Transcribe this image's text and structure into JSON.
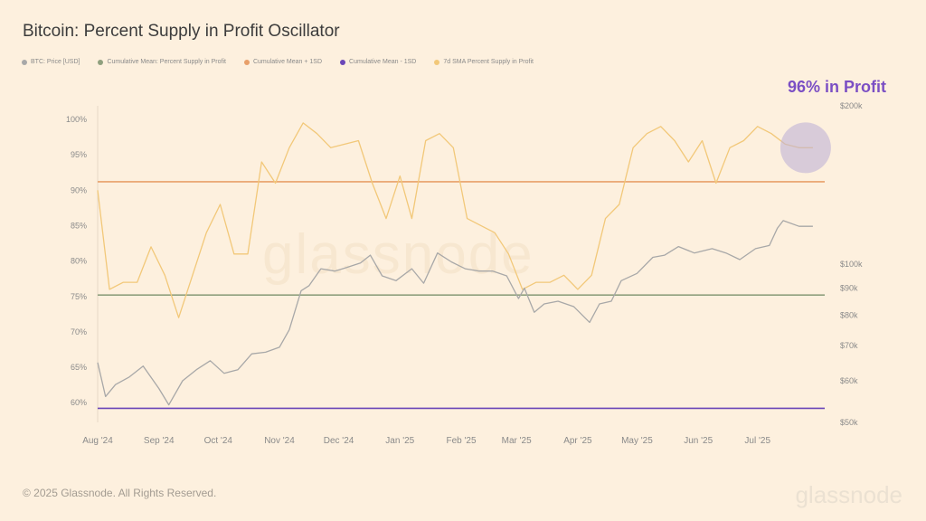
{
  "title": "Bitcoin: Percent Supply in Profit Oscillator",
  "legend": [
    {
      "label": "BTC: Price [USD]",
      "color": "#a8a8a8"
    },
    {
      "label": "Cumulative Mean: Percent Supply in Profit",
      "color": "#8fa07e"
    },
    {
      "label": "Cumulative Mean + 1SD",
      "color": "#e8a06a"
    },
    {
      "label": "Cumulative Mean - 1SD",
      "color": "#6b47b8"
    },
    {
      "label": "7d SMA Percent Supply in Profit",
      "color": "#f2c879"
    }
  ],
  "callout": "96% in Profit",
  "footer": "© 2025 Glassnode. All Rights Reserved.",
  "brand": "glassnode",
  "watermark": "glassnode",
  "chart_data": {
    "type": "line",
    "x_ticks": [
      "Aug '24",
      "Sep '24",
      "Oct '24",
      "Nov '24",
      "Dec '24",
      "Jan '25",
      "Feb '25",
      "Mar '25",
      "Apr '25",
      "May '25",
      "Jun '25",
      "Jul '25"
    ],
    "left_axis": {
      "ticks": [
        "100%",
        "95%",
        "90%",
        "85%",
        "80%",
        "75%",
        "70%",
        "65%",
        "60%"
      ],
      "range": [
        59,
        101
      ]
    },
    "right_axis": {
      "ticks": [
        "$200k",
        "$100k",
        "$90k",
        "$80k",
        "$70k",
        "$60k",
        "$50k"
      ],
      "scale": "log",
      "range": [
        50000,
        200000
      ]
    },
    "reference_lines": [
      {
        "name": "Cumulative Mean + 1SD",
        "value": 91.2,
        "color": "#e8a06a"
      },
      {
        "name": "Cumulative Mean: Percent Supply in Profit",
        "value": 75.2,
        "color": "#8fa07e"
      },
      {
        "name": "Cumulative Mean - 1SD",
        "value": 59.2,
        "color": "#6b47b8"
      }
    ],
    "series": [
      {
        "name": "7d SMA Percent Supply in Profit",
        "axis": "left",
        "color": "#f2c879",
        "x": [
          "2024-08-01",
          "2024-08-07",
          "2024-08-14",
          "2024-08-21",
          "2024-08-28",
          "2024-09-04",
          "2024-09-11",
          "2024-09-18",
          "2024-09-25",
          "2024-10-02",
          "2024-10-09",
          "2024-10-16",
          "2024-10-23",
          "2024-10-30",
          "2024-11-06",
          "2024-11-13",
          "2024-11-20",
          "2024-11-27",
          "2024-12-04",
          "2024-12-11",
          "2024-12-18",
          "2024-12-25",
          "2025-01-01",
          "2025-01-07",
          "2025-01-14",
          "2025-01-21",
          "2025-01-28",
          "2025-02-04",
          "2025-02-11",
          "2025-02-18",
          "2025-02-25",
          "2025-03-04",
          "2025-03-11",
          "2025-03-18",
          "2025-03-25",
          "2025-04-01",
          "2025-04-08",
          "2025-04-15",
          "2025-04-22",
          "2025-04-29",
          "2025-05-06",
          "2025-05-13",
          "2025-05-20",
          "2025-05-27",
          "2025-06-03",
          "2025-06-10",
          "2025-06-17",
          "2025-06-24",
          "2025-07-01",
          "2025-07-08",
          "2025-07-15",
          "2025-07-22",
          "2025-07-29"
        ],
        "y": [
          90,
          76,
          77,
          77,
          82,
          78,
          72,
          78,
          84,
          88,
          81,
          81,
          94,
          91,
          96,
          99.5,
          98,
          96,
          96.5,
          97,
          91,
          86,
          92,
          86,
          97,
          98,
          96,
          86,
          85,
          84,
          81,
          76,
          77,
          77,
          78,
          76,
          78,
          86,
          88,
          96,
          98,
          99,
          97,
          94,
          97,
          91,
          96,
          97,
          99,
          98,
          96.5,
          96,
          96
        ]
      },
      {
        "name": "BTC: Price [USD]",
        "axis": "right",
        "color": "#a8a8a8",
        "x": [
          "2024-08-01",
          "2024-08-05",
          "2024-08-10",
          "2024-08-17",
          "2024-08-24",
          "2024-09-01",
          "2024-09-06",
          "2024-09-13",
          "2024-09-20",
          "2024-09-27",
          "2024-10-04",
          "2024-10-11",
          "2024-10-18",
          "2024-10-25",
          "2024-11-01",
          "2024-11-06",
          "2024-11-12",
          "2024-11-16",
          "2024-11-22",
          "2024-11-29",
          "2024-12-05",
          "2024-12-12",
          "2024-12-17",
          "2024-12-23",
          "2024-12-30",
          "2025-01-07",
          "2025-01-13",
          "2025-01-20",
          "2025-01-27",
          "2025-02-03",
          "2025-02-10",
          "2025-02-17",
          "2025-02-24",
          "2025-03-02",
          "2025-03-05",
          "2025-03-10",
          "2025-03-15",
          "2025-03-22",
          "2025-03-30",
          "2025-04-07",
          "2025-04-12",
          "2025-04-18",
          "2025-04-23",
          "2025-05-01",
          "2025-05-09",
          "2025-05-15",
          "2025-05-22",
          "2025-05-30",
          "2025-06-08",
          "2025-06-15",
          "2025-06-22",
          "2025-06-30",
          "2025-07-07",
          "2025-07-11",
          "2025-07-14",
          "2025-07-22",
          "2025-07-29"
        ],
        "y": [
          65000,
          56000,
          59000,
          61000,
          64000,
          58000,
          54000,
          60000,
          63000,
          65500,
          62000,
          63000,
          67500,
          68000,
          69500,
          75000,
          89000,
          91000,
          98000,
          97000,
          98500,
          100500,
          104000,
          95000,
          93000,
          98000,
          92000,
          105000,
          101000,
          98000,
          97000,
          97000,
          95000,
          86000,
          90000,
          81000,
          84000,
          85000,
          83000,
          77500,
          84000,
          85000,
          93000,
          96000,
          103000,
          104000,
          108000,
          105000,
          107000,
          105000,
          102000,
          107000,
          108500,
          117000,
          121000,
          118000,
          118000
        ]
      }
    ],
    "highlight": {
      "x": "2025-07-29",
      "y": 96,
      "label": "96% in Profit"
    }
  }
}
